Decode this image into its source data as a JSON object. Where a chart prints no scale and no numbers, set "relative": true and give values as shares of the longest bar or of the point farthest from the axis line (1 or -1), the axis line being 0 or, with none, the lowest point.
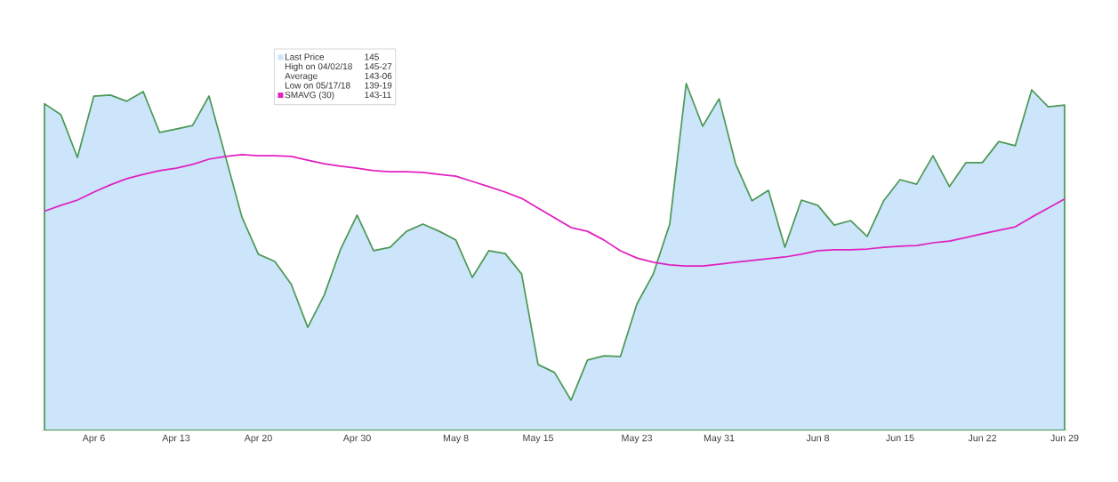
{
  "chart_data": {
    "type": "area",
    "relative": true,
    "legend": "top left",
    "categories": [
      null,
      null,
      null,
      "Apr 6",
      null,
      null,
      null,
      null,
      "Apr 13",
      null,
      null,
      null,
      null,
      "Apr 20",
      null,
      null,
      null,
      null,
      null,
      "Apr 30",
      null,
      null,
      null,
      null,
      null,
      "May 8",
      null,
      null,
      null,
      null,
      "May 15",
      null,
      null,
      null,
      null,
      null,
      "May 23",
      null,
      null,
      null,
      null,
      "May 31",
      null,
      null,
      null,
      null,
      null,
      "Jun 8",
      null,
      null,
      null,
      null,
      "Jun 15",
      null,
      null,
      null,
      null,
      "Jun 22",
      null,
      null,
      null,
      null,
      "Jun 29"
    ],
    "series": [
      {
        "name": "Last Price",
        "color": "#cce5fb",
        "values": [
          0.942,
          0.91,
          0.787,
          0.964,
          0.967,
          0.949,
          0.977,
          0.859,
          0.869,
          0.879,
          0.964,
          0.79,
          0.615,
          0.508,
          0.487,
          0.421,
          0.297,
          0.39,
          0.523,
          0.621,
          0.518,
          0.528,
          0.574,
          0.595,
          0.574,
          0.549,
          0.441,
          0.518,
          0.51,
          0.451,
          0.19,
          0.167,
          0.087,
          0.203,
          0.215,
          0.213,
          0.364,
          0.451,
          0.595,
          1,
          0.877,
          0.956,
          0.769,
          0.662,
          0.692,
          0.528,
          0.664,
          0.649,
          0.592,
          0.605,
          0.559,
          0.662,
          0.723,
          0.71,
          0.792,
          0.703,
          0.772,
          0.772,
          0.833,
          0.821,
          0.982,
          0.933,
          0.938
        ]
      },
      {
        "name": "SMAVG (30)",
        "type": "line",
        "color": "#e020c0",
        "values": [
          0.632,
          0.649,
          0.664,
          0.687,
          0.708,
          0.726,
          0.738,
          0.749,
          0.756,
          0.767,
          0.782,
          0.79,
          0.795,
          0.792,
          0.792,
          0.79,
          0.779,
          0.769,
          0.762,
          0.756,
          0.749,
          0.746,
          0.746,
          0.744,
          0.738,
          0.733,
          0.718,
          0.703,
          0.687,
          0.669,
          0.641,
          0.613,
          0.585,
          0.574,
          0.549,
          0.518,
          0.497,
          0.485,
          0.477,
          0.474,
          0.474,
          0.479,
          0.485,
          0.49,
          0.495,
          0.5,
          0.508,
          0.518,
          0.521,
          0.521,
          0.523,
          0.528,
          0.531,
          0.533,
          0.541,
          0.546,
          0.556,
          0.567,
          0.577,
          0.587,
          0.615,
          0.641,
          0.667
        ]
      }
    ],
    "annotations": [
      "145",
      "High on 04/02/18",
      "145-27",
      "Average",
      "143-06",
      "Low on 05/17/18",
      "139-19",
      "143-11"
    ]
  }
}
